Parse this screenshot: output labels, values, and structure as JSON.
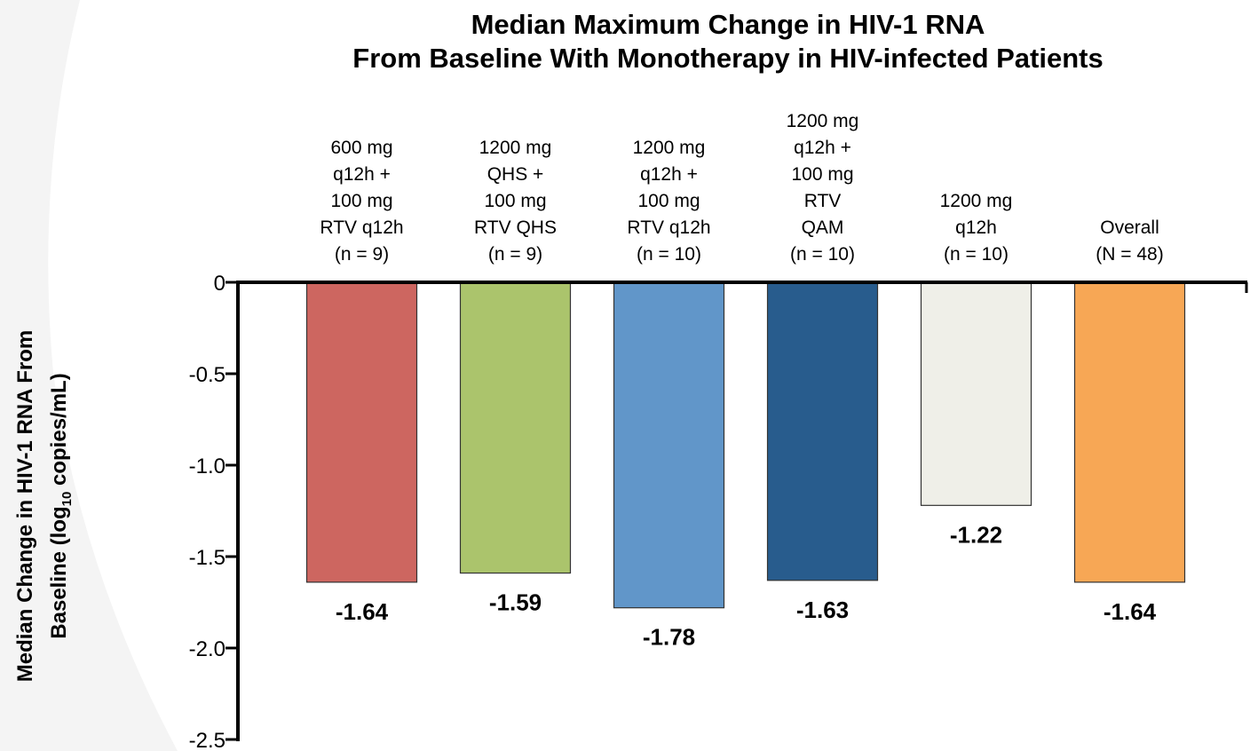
{
  "chart_data": {
    "type": "bar",
    "title": [
      "Median Maximum Change in HIV-1 RNA",
      "From Baseline With Monotherapy in HIV-infected Patients"
    ],
    "ylabel": [
      "Median Change in HIV-1 RNA From",
      "Baseline (log",
      "10",
      " copies/mL)"
    ],
    "categories": [
      [
        "600 mg",
        "q12h +",
        "100 mg",
        "RTV q12h",
        "(n = 9)"
      ],
      [
        "1200 mg",
        "QHS +",
        "100 mg",
        "RTV QHS",
        "(n = 9)"
      ],
      [
        "1200 mg",
        "q12h +",
        "100 mg",
        "RTV q12h",
        "(n = 10)"
      ],
      [
        "1200 mg",
        "q12h +",
        "100 mg",
        "RTV",
        "QAM",
        "(n = 10)"
      ],
      [
        "1200 mg",
        "q12h",
        "(n = 10)"
      ],
      [
        "Overall",
        "(N = 48)"
      ]
    ],
    "values": [
      -1.64,
      -1.59,
      -1.78,
      -1.63,
      -1.22,
      -1.64
    ],
    "colors": [
      "#cd6660",
      "#abc46c",
      "#6196c9",
      "#285c8d",
      "#efefe8",
      "#f7a755"
    ],
    "ylim": [
      -2.5,
      0
    ],
    "yticks": [
      0,
      -0.5,
      {
        "value": -1.0,
        "label": "-1.0"
      },
      -1.5,
      {
        "value": -2.0,
        "label": "-2.0"
      },
      -2.5
    ]
  }
}
